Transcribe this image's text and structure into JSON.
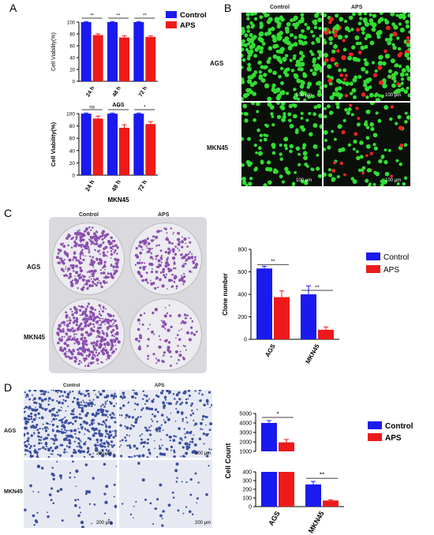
{
  "panels": {
    "A": {
      "label": "A"
    },
    "B": {
      "label": "B",
      "col_labels": [
        "Control",
        "APS"
      ],
      "row_labels": [
        "AGS",
        "MKN45"
      ],
      "scale": "100 μm"
    },
    "C": {
      "label": "C",
      "col_labels": [
        "Control",
        "APS"
      ],
      "row_labels": [
        "AGS",
        "MKN45"
      ]
    },
    "D": {
      "label": "D",
      "col_labels": [
        "Control",
        "APS"
      ],
      "row_labels": [
        "AGS",
        "MKN45"
      ],
      "scale": "200 μm"
    }
  },
  "colors": {
    "control": "#1a1aee",
    "aps": "#ee1a1a",
    "fluor_bg": "#0a0f0a",
    "cell_green": "#33dd33",
    "cell_red": "#ee2222",
    "colony": "#8a4fb0",
    "stain": "#3a4fa0"
  },
  "chart_data": [
    {
      "id": "A1",
      "type": "bar",
      "categories": [
        "24 h",
        "48 h",
        "72 h"
      ],
      "series": [
        {
          "name": "Control",
          "values": [
            100,
            100,
            100
          ],
          "errors": [
            1,
            1,
            1
          ]
        },
        {
          "name": "APS",
          "values": [
            78,
            74,
            75
          ],
          "errors": [
            2,
            3,
            2
          ]
        }
      ],
      "ylabel": "Cell Viability(%)",
      "xlabel": "",
      "title": "AGS",
      "ylim": [
        0,
        100
      ],
      "yticks": [
        "0",
        "20",
        "40",
        "60",
        "80",
        "100"
      ],
      "significance": [
        "**",
        "**",
        "**"
      ],
      "legend": "top-right"
    },
    {
      "id": "A2",
      "type": "bar",
      "categories": [
        "24 h",
        "48 h",
        "72 h"
      ],
      "series": [
        {
          "name": "Control",
          "values": [
            100,
            100,
            100
          ],
          "errors": [
            1,
            1,
            1
          ]
        },
        {
          "name": "APS",
          "values": [
            92,
            77,
            83
          ],
          "errors": [
            4,
            5,
            4
          ]
        }
      ],
      "ylabel": "Cell Viability(%)",
      "xlabel": "MKN45",
      "ylim": [
        0,
        100
      ],
      "yticks": [
        "0",
        "20",
        "40",
        "60",
        "80",
        "100"
      ],
      "significance": [
        "ns",
        "**",
        "*"
      ]
    },
    {
      "id": "C",
      "type": "bar",
      "categories": [
        "AGS",
        "MKN45"
      ],
      "series": [
        {
          "name": "Control",
          "values": [
            630,
            400
          ],
          "errors": [
            20,
            75
          ]
        },
        {
          "name": "APS",
          "values": [
            375,
            85
          ],
          "errors": [
            55,
            25
          ]
        }
      ],
      "ylabel": "Clone number",
      "ylim": [
        0,
        800
      ],
      "yticks": [
        "0",
        "200",
        "400",
        "600",
        "800"
      ],
      "significance": [
        "**",
        "**"
      ],
      "legend": "top-right"
    },
    {
      "id": "D",
      "type": "bar",
      "broken_axis": true,
      "categories": [
        "AGS",
        "MKN45"
      ],
      "series": [
        {
          "name": "Control",
          "values": [
            4000,
            255
          ],
          "errors": [
            250,
            35
          ]
        },
        {
          "name": "APS",
          "values": [
            1950,
            70
          ],
          "errors": [
            300,
            8
          ]
        }
      ],
      "ylabel": "Cell Count",
      "yticks_upper": [
        "1000",
        "2000",
        "3000",
        "4000",
        "5000"
      ],
      "yticks_lower": [
        "0",
        "100",
        "200",
        "300",
        "400"
      ],
      "significance": [
        "*",
        "**"
      ],
      "legend": "top-right"
    }
  ]
}
